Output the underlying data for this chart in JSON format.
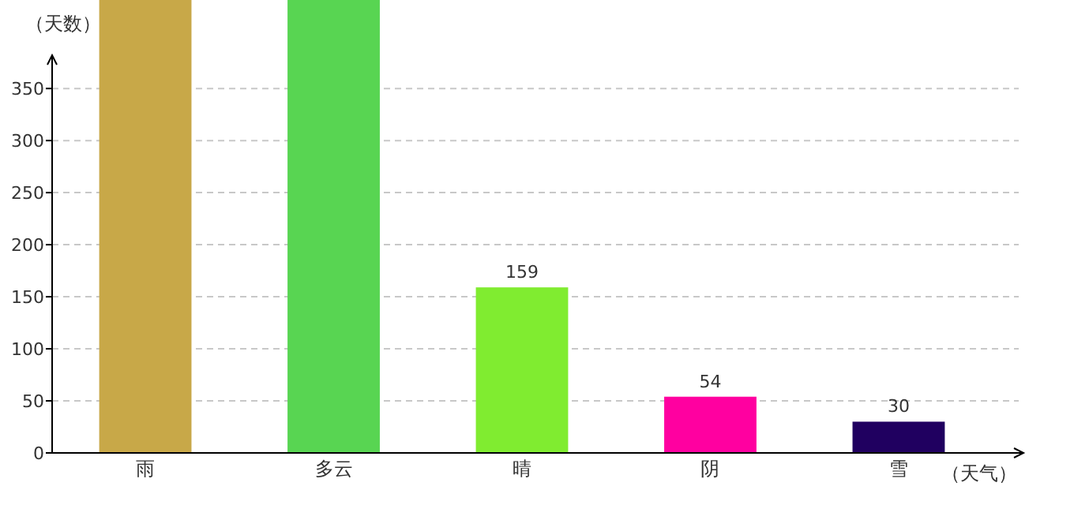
{
  "chart_data": {
    "type": "bar",
    "xlabel": "（天气）",
    "ylabel": "（天数）",
    "categories": [
      "雨",
      "多云",
      "晴",
      "阴",
      "雪"
    ],
    "values": [
      435,
      435,
      159,
      54,
      30
    ],
    "colors": [
      "#c8a848",
      "#58d552",
      "#80ec30",
      "#ff00a0",
      "#200060"
    ],
    "value_labels": [
      null,
      null,
      "159",
      "54",
      "30"
    ],
    "ylim": [
      0,
      435
    ],
    "yticks": [
      0,
      50,
      100,
      150,
      200,
      250,
      300,
      350
    ],
    "grid": "y"
  }
}
